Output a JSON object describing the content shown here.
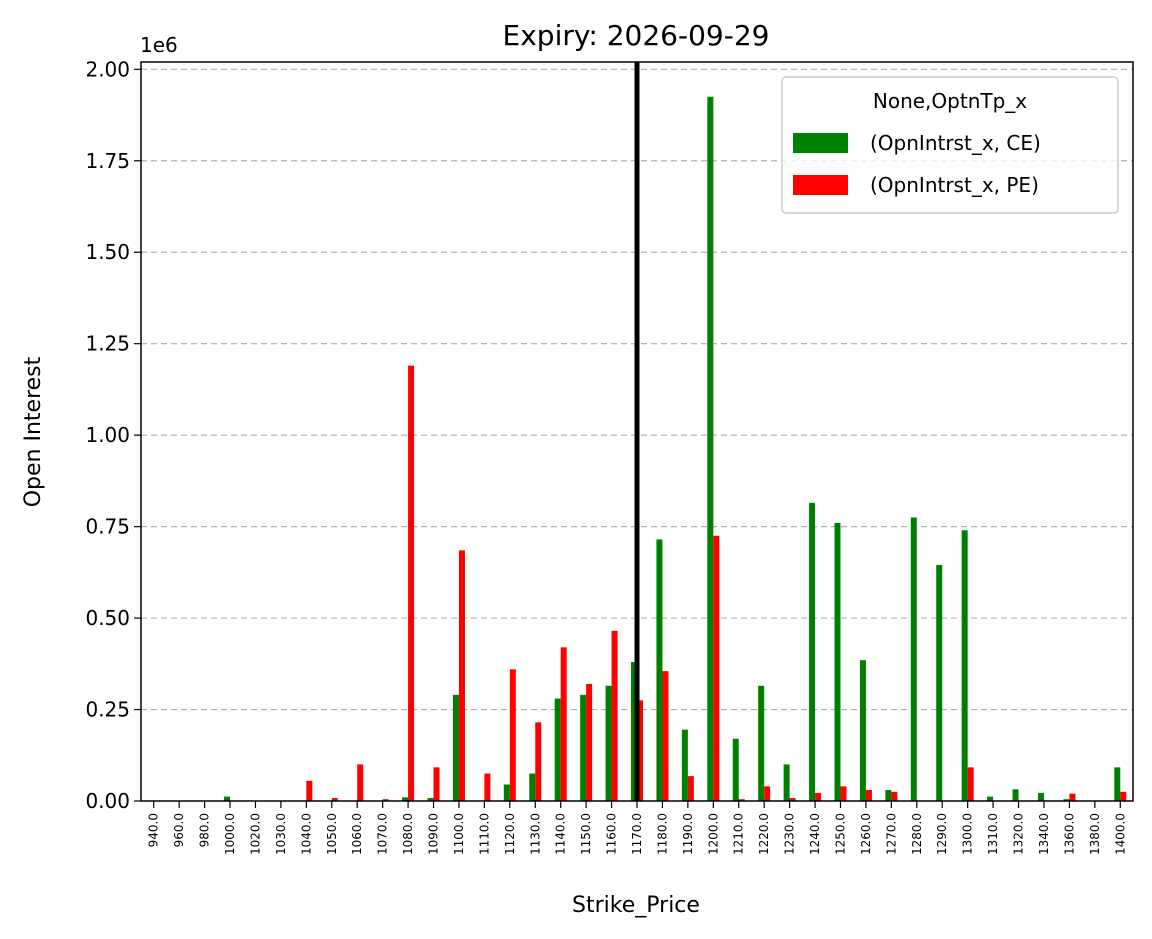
{
  "chart_data": {
    "type": "bar",
    "title": "Expiry: 2026-09-29",
    "xlabel": "Strike_Price",
    "ylabel": "Open Interest",
    "y_offset_label": "1e6",
    "ylim": [
      0,
      2020000
    ],
    "yticks": [
      0,
      250000,
      500000,
      750000,
      1000000,
      1250000,
      1500000,
      1750000,
      2000000
    ],
    "ytick_labels": [
      "0.00",
      "0.25",
      "0.50",
      "0.75",
      "1.00",
      "1.25",
      "1.50",
      "1.75",
      "2.00"
    ],
    "grid": "y-dashed",
    "vline_category": "1170.0",
    "categories": [
      "940.0",
      "960.0",
      "980.0",
      "1000.0",
      "1020.0",
      "1030.0",
      "1040.0",
      "1050.0",
      "1060.0",
      "1070.0",
      "1080.0",
      "1090.0",
      "1100.0",
      "1110.0",
      "1120.0",
      "1130.0",
      "1140.0",
      "1150.0",
      "1160.0",
      "1170.0",
      "1180.0",
      "1190.0",
      "1200.0",
      "1210.0",
      "1220.0",
      "1230.0",
      "1240.0",
      "1250.0",
      "1260.0",
      "1270.0",
      "1280.0",
      "1290.0",
      "1300.0",
      "1310.0",
      "1320.0",
      "1340.0",
      "1360.0",
      "1380.0",
      "1400.0"
    ],
    "legend": {
      "title": "None,OptnTp_x",
      "position": "upper right"
    },
    "series": [
      {
        "name": "(OpnIntrst_x, CE)",
        "color": "#008000",
        "values": [
          0,
          0,
          0,
          12000,
          0,
          0,
          0,
          0,
          0,
          0,
          10000,
          8000,
          290000,
          0,
          45000,
          75000,
          280000,
          290000,
          315000,
          380000,
          715000,
          195000,
          1925000,
          170000,
          315000,
          100000,
          815000,
          760000,
          385000,
          30000,
          775000,
          645000,
          740000,
          12000,
          32000,
          22000,
          5000,
          0,
          92000
        ]
      },
      {
        "name": "(OpnIntrst_x, PE)",
        "color": "#ff0000",
        "values": [
          0,
          0,
          0,
          0,
          0,
          0,
          55000,
          8000,
          100000,
          5000,
          1190000,
          92000,
          685000,
          75000,
          360000,
          215000,
          420000,
          320000,
          465000,
          275000,
          355000,
          68000,
          725000,
          5000,
          40000,
          8000,
          22000,
          40000,
          30000,
          25000,
          0,
          0,
          92000,
          0,
          0,
          0,
          20000,
          0,
          25000
        ]
      }
    ]
  }
}
